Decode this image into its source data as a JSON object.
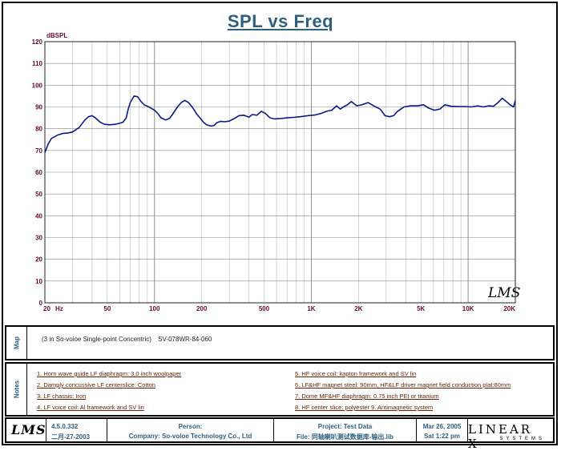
{
  "chart_data": {
    "type": "line",
    "title": "SPL vs Freq",
    "ylabel": "dBSPL",
    "xlabel": "Hz",
    "xscale": "log",
    "xlim": [
      20,
      20000
    ],
    "ylim": [
      0,
      120
    ],
    "yticks": [
      0,
      10,
      20,
      30,
      40,
      50,
      60,
      70,
      80,
      90,
      100,
      110,
      120
    ],
    "xticks": [
      {
        "value": 20,
        "label": "20"
      },
      {
        "value": 50,
        "label": "50"
      },
      {
        "value": 100,
        "label": "100"
      },
      {
        "value": 200,
        "label": "200"
      },
      {
        "value": 500,
        "label": "500"
      },
      {
        "value": 1000,
        "label": "1K"
      },
      {
        "value": 2000,
        "label": "2K"
      },
      {
        "value": 5000,
        "label": "5K"
      },
      {
        "value": 10000,
        "label": "10K"
      },
      {
        "value": 20000,
        "label": "20K"
      }
    ],
    "series": [
      {
        "name": "SPL",
        "color": "#0a1a8a",
        "points": [
          [
            20,
            69
          ],
          [
            21,
            73
          ],
          [
            22,
            75.5
          ],
          [
            24,
            77
          ],
          [
            26,
            77.8
          ],
          [
            28,
            78
          ],
          [
            30,
            78.5
          ],
          [
            33,
            80.5
          ],
          [
            36,
            84
          ],
          [
            38,
            85.5
          ],
          [
            40,
            86
          ],
          [
            42,
            85
          ],
          [
            45,
            83
          ],
          [
            48,
            82
          ],
          [
            52,
            81.8
          ],
          [
            56,
            82
          ],
          [
            60,
            82.5
          ],
          [
            63,
            83
          ],
          [
            66,
            85
          ],
          [
            68,
            89
          ],
          [
            70,
            92
          ],
          [
            74,
            95
          ],
          [
            78,
            94.7
          ],
          [
            82,
            92.5
          ],
          [
            86,
            91
          ],
          [
            92,
            90
          ],
          [
            100,
            88.5
          ],
          [
            105,
            87
          ],
          [
            110,
            85
          ],
          [
            118,
            84
          ],
          [
            125,
            84.8
          ],
          [
            130,
            86.5
          ],
          [
            140,
            90
          ],
          [
            148,
            92
          ],
          [
            156,
            93
          ],
          [
            165,
            92
          ],
          [
            176,
            89.5
          ],
          [
            185,
            87
          ],
          [
            195,
            85
          ],
          [
            205,
            83
          ],
          [
            215,
            81.8
          ],
          [
            230,
            81.2
          ],
          [
            240,
            81.5
          ],
          [
            250,
            82.8
          ],
          [
            265,
            83.4
          ],
          [
            280,
            83.2
          ],
          [
            300,
            83.5
          ],
          [
            320,
            84.5
          ],
          [
            345,
            86
          ],
          [
            370,
            86.2
          ],
          [
            400,
            85.3
          ],
          [
            420,
            86.5
          ],
          [
            450,
            86.2
          ],
          [
            480,
            88
          ],
          [
            510,
            87
          ],
          [
            545,
            85
          ],
          [
            580,
            84.5
          ],
          [
            640,
            84.7
          ],
          [
            700,
            85
          ],
          [
            770,
            85.2
          ],
          [
            850,
            85.5
          ],
          [
            950,
            86
          ],
          [
            1050,
            86.3
          ],
          [
            1150,
            87
          ],
          [
            1250,
            88
          ],
          [
            1350,
            88.5
          ],
          [
            1450,
            90.5
          ],
          [
            1530,
            89
          ],
          [
            1600,
            90
          ],
          [
            1700,
            91
          ],
          [
            1800,
            92.5
          ],
          [
            1950,
            90.5
          ],
          [
            2100,
            91
          ],
          [
            2300,
            92
          ],
          [
            2500,
            90.5
          ],
          [
            2750,
            89
          ],
          [
            2950,
            86
          ],
          [
            3150,
            85.5
          ],
          [
            3350,
            86
          ],
          [
            3550,
            88
          ],
          [
            3900,
            90
          ],
          [
            4300,
            90.5
          ],
          [
            4750,
            90.5
          ],
          [
            5200,
            91
          ],
          [
            5600,
            89.5
          ],
          [
            6100,
            88.5
          ],
          [
            6600,
            89
          ],
          [
            7100,
            91
          ],
          [
            7800,
            90.3
          ],
          [
            8700,
            90.2
          ],
          [
            9600,
            90.2
          ],
          [
            10500,
            90
          ],
          [
            11500,
            90.5
          ],
          [
            12500,
            90
          ],
          [
            13500,
            90.5
          ],
          [
            14500,
            90.3
          ],
          [
            15500,
            92
          ],
          [
            16500,
            94
          ],
          [
            17500,
            92.5
          ],
          [
            18500,
            91
          ],
          [
            19500,
            90
          ],
          [
            20000,
            93
          ]
        ]
      }
    ]
  },
  "map": {
    "label": "Map",
    "description": "(3 in So-voioe Single-point Concentric)",
    "model": "SV-078WR-84-060"
  },
  "notes": {
    "label": "Notes",
    "left": [
      "1.  Horn wave guide LF diaphragm: 3.0 inch woolpaper",
      "2.  Damply concussive LF centerslice: Cotton",
      "3.  LF chassis: Iron",
      "4.  LF voice coil: Al framework and SV lin"
    ],
    "right": [
      "5.  HF voice coil: kapton framework and SV lin",
      "6.  LF&HF magnet steel: 90mm, HF&LF driver magnet field conduction plat:80mm",
      "7.  Dome MF&HF diaphragm:          0.75 inch PEI or titanium",
      "8.  HF center slice: polyester   9.  Antimagnetic system"
    ]
  },
  "footer": {
    "logo": "LMS",
    "version": "4.5.0.332",
    "version_date": "二月-27-2003",
    "person_label": "Person:",
    "company": "Company: So-voioe Technology Co., Ltd",
    "project": "Project: Test Data",
    "file": "File: 同轴喇叭测试数据库-输出.lib",
    "date": "Mar 26, 2005",
    "time": "Sat  1:22 pm",
    "brand": "LINEAR X",
    "brand_sub": "SYSTEMS"
  },
  "watermark": "LMS"
}
